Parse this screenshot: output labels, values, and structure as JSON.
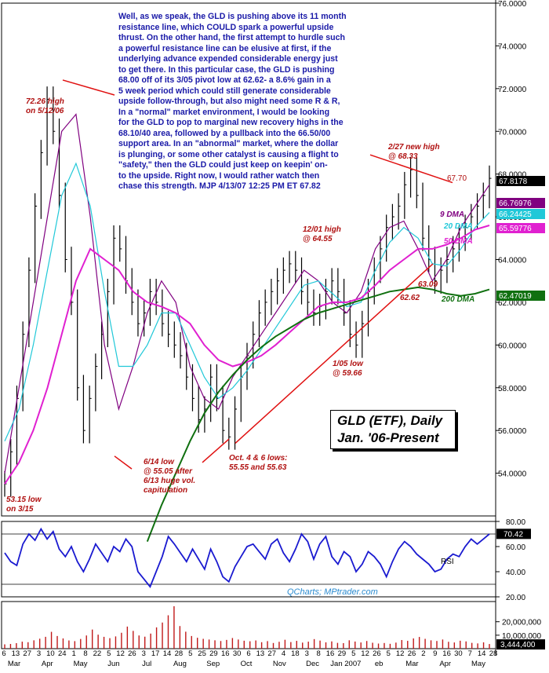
{
  "commentary": "Well, as we speak, the GLD is pushing above its 11 month\nresistance line, which COULD spark a powerful upside\nthrust. On the other hand, the first attempt to hurdle such\na powerful resistance line can be elusive at first, if the\nunderlying advance expended considerable energy just\nto get there. In this particular case, the GLD is pushing\n68.00 off of its 3/05 pivot low at 62.62- a 8.6% gain in a\n5 week period which could still generate considerable\nupside follow-through, but also might need some R & R,\nIn a \"normal\" market environment, I would be looking\nfor the GLD to pop to marginal new recovery highs in the\n68.10/40 area, followed by a pullback into the 66.50/00\nsupport area. In an \"abnormal\" market, where the dollar\nis plunging, or some other catalyst is causing a flight to\n\"safety,\" then the GLD could just keep on keepin' on-\nto the upside. Right now, I would rather watch then\nchase this strength.  MJP 4/13/07 12:25 PM ET 67.82",
  "title_line1": "GLD (ETF), Daily",
  "title_line2": "Jan. '06-Present",
  "credit": "QCharts; MPtrader.com",
  "annotations": {
    "high_7226": "72.26 high\non 5/12/06",
    "low_5315": "53.15 low\non 3/15",
    "low_5505": "6/14 low\n@ 55.05 after\n6/13 huge vol.\ncapitulation",
    "low_oct": "Oct. 4 & 6 lows:\n55.55 and 55.63",
    "low_5966": "1/05 low\n@ 59.66",
    "high_6455": "12/01 high\n@ 64.55",
    "high_6833": "2/27 new high\n@ 68.33",
    "level_6770": "67.70",
    "level_6309": "63.09",
    "level_6262": "62.62"
  },
  "chart_data": [
    {
      "type": "line",
      "title": "GLD (ETF), Daily",
      "subtitle": "Jan. '06-Present",
      "ylim": [
        52.0,
        76.0
      ],
      "y_ticks": [
        "76.0000",
        "74.0000",
        "72.0000",
        "70.0000",
        "68.0000",
        "66.0000",
        "64.0000",
        "62.0000",
        "60.0000",
        "58.0000",
        "56.0000",
        "54.0000"
      ],
      "x_tick_labels": [
        "6",
        "13",
        "27",
        "3",
        "10",
        "24",
        "1",
        "8",
        "22",
        "5",
        "12",
        "26",
        "3",
        "17",
        "14",
        "28",
        "5",
        "25",
        "29",
        "16",
        "30",
        "6",
        "13",
        "27",
        "4",
        "18",
        "3",
        "8",
        "16",
        "29",
        "5",
        "12",
        "26",
        "5",
        "12",
        "26",
        "2",
        "9",
        "16",
        "30",
        "7",
        "14",
        "28"
      ],
      "month_labels": [
        "Mar",
        "Apr",
        "May",
        "Jun",
        "Jul",
        "Aug",
        "Sep",
        "Oct",
        "Nov",
        "Dec",
        "Jan 2007",
        "eb",
        "Mar",
        "Apr",
        "May"
      ],
      "series": [
        {
          "name": "9 DMA",
          "color": "#800080",
          "values": [
            54.0,
            58.0,
            62.0,
            66.0,
            70.0,
            70.8,
            66.0,
            60.0,
            57.0,
            59.0,
            61.5,
            63.0,
            62.0,
            59.0,
            57.5,
            57.0,
            58.5,
            59.5,
            60.5,
            61.5,
            62.5,
            63.5,
            63.0,
            62.0,
            61.5,
            62.5,
            64.5,
            65.5,
            65.8,
            64.5,
            63.0,
            64.0,
            65.5,
            66.5,
            67.5
          ]
        },
        {
          "name": "20 DMA",
          "color": "#20c8d8",
          "values": [
            55.5,
            57.0,
            60.0,
            63.5,
            67.0,
            68.5,
            66.5,
            62.5,
            59.0,
            59.0,
            60.0,
            61.5,
            61.5,
            60.0,
            58.5,
            57.5,
            58.0,
            58.8,
            59.8,
            60.8,
            61.8,
            62.8,
            63.0,
            62.4,
            61.8,
            62.0,
            63.5,
            64.8,
            65.5,
            65.0,
            63.8,
            63.7,
            64.5,
            65.5,
            66.2
          ]
        },
        {
          "name": "50 DMA",
          "color": "#e020d0",
          "values": [
            53.5,
            54.5,
            56.0,
            58.0,
            60.5,
            63.0,
            64.5,
            64.0,
            63.5,
            62.5,
            62.0,
            61.8,
            61.5,
            61.0,
            60.0,
            59.3,
            59.0,
            59.2,
            59.5,
            60.0,
            60.6,
            61.2,
            61.8,
            62.0,
            62.0,
            62.2,
            62.8,
            63.5,
            64.0,
            64.5,
            64.5,
            64.7,
            65.0,
            65.4,
            65.6
          ]
        },
        {
          "name": "200 DMA",
          "color": "#107010",
          "values": [
            null,
            null,
            null,
            null,
            null,
            null,
            null,
            null,
            null,
            null,
            50.8,
            52.5,
            54.0,
            55.5,
            56.8,
            57.8,
            58.6,
            59.3,
            59.9,
            60.4,
            60.8,
            61.2,
            61.5,
            61.7,
            61.9,
            62.1,
            62.3,
            62.5,
            62.6,
            62.7,
            62.6,
            62.4,
            62.3,
            62.4,
            62.6
          ]
        }
      ],
      "close_path": [
        53.5,
        55.0,
        57.5,
        60.5,
        63.5,
        66.5,
        69.0,
        71.5,
        70.0,
        67.0,
        64.0,
        62.0,
        58.0,
        56.0,
        57.5,
        59.0,
        60.5,
        62.5,
        65.0,
        64.5,
        63.0,
        62.0,
        61.0,
        61.5,
        62.5,
        62.0,
        61.0,
        60.5,
        60.0,
        59.5,
        58.5,
        57.5,
        56.5,
        57.0,
        58.5,
        57.5,
        56.0,
        55.7,
        57.0,
        58.5,
        59.5,
        60.5,
        61.5,
        62.0,
        62.5,
        63.0,
        63.5,
        63.8,
        63.5,
        62.5,
        62.0,
        61.5,
        61.8,
        62.5,
        63.0,
        62.5,
        61.5,
        60.5,
        60.0,
        61.0,
        62.5,
        63.5,
        64.5,
        65.5,
        66.0,
        66.5,
        67.5,
        68.2,
        67.0,
        65.0,
        64.0,
        63.0,
        63.5,
        64.0,
        64.5,
        65.0,
        65.5,
        66.0,
        66.5,
        67.0,
        67.8
      ],
      "last_values": [
        {
          "label": "67.8178",
          "value": 67.8178,
          "color": "#000000"
        },
        {
          "label": "66.76976",
          "value": 66.76976,
          "color": "#800080"
        },
        {
          "label": "66.24425",
          "value": 66.24425,
          "color": "#20c8d8"
        },
        {
          "label": "65.59776",
          "value": 65.59776,
          "color": "#e020d0"
        },
        {
          "label": "62.47019",
          "value": 62.47019,
          "color": "#107010"
        }
      ]
    },
    {
      "type": "line",
      "name": "RSI",
      "ylim": [
        20,
        80
      ],
      "y_ticks": [
        "80.00",
        "60.00",
        "40.00",
        "20.00"
      ],
      "reference_lines": [
        70,
        30
      ],
      "values": [
        55,
        48,
        45,
        62,
        70,
        65,
        74,
        66,
        72,
        58,
        52,
        60,
        48,
        40,
        50,
        62,
        55,
        48,
        60,
        56,
        66,
        60,
        40,
        34,
        28,
        40,
        52,
        68,
        62,
        55,
        48,
        58,
        50,
        42,
        58,
        48,
        36,
        32,
        44,
        52,
        60,
        62,
        56,
        50,
        62,
        66,
        55,
        48,
        58,
        70,
        64,
        50,
        62,
        68,
        52,
        46,
        56,
        52,
        40,
        46,
        56,
        52,
        46,
        36,
        48,
        58,
        64,
        60,
        54,
        50,
        46,
        40,
        42,
        50,
        54,
        52,
        60,
        66,
        62,
        66,
        70
      ],
      "last_value": {
        "label": "70.42",
        "value": 70.42
      }
    },
    {
      "type": "bar",
      "name": "Volume",
      "ylim": [
        0,
        35000000
      ],
      "y_ticks": [
        "20,000,000",
        "10,000,000"
      ],
      "values": [
        3200000,
        3500000,
        4100000,
        5200000,
        4800000,
        6200000,
        7400000,
        8800000,
        12500000,
        9400000,
        7600000,
        6100000,
        5600000,
        7200000,
        9800000,
        14200000,
        10400000,
        8800000,
        7800000,
        9100000,
        11800000,
        16400000,
        13200000,
        9800000,
        8900000,
        11200000,
        15800000,
        19400000,
        24800000,
        31500000,
        16800000,
        12600000,
        9400000,
        8100000,
        7300000,
        6800000,
        6200000,
        5700000,
        6500000,
        7900000,
        6800000,
        5900000,
        5500000,
        6100000,
        4800000,
        5600000,
        4200000,
        5100000,
        6600000,
        4900000,
        5800000,
        4500000,
        5200000,
        7100000,
        6000000,
        4700000,
        5400000,
        4300000,
        4100000,
        6200000,
        5300000,
        4600000,
        5700000,
        4400000,
        3800000,
        4200000,
        3600000,
        4500000,
        6400000,
        5800000,
        7600000,
        8700000,
        7300000,
        6200000,
        5700000,
        6800000,
        5100000,
        4600000,
        5900000,
        5400000,
        4300000,
        3900000,
        4700000,
        3444400
      ],
      "last_value": {
        "label": "3,444,400",
        "value": 3444400
      }
    }
  ],
  "ma_labels": {
    "dma9": "9 DMA",
    "dma20": "20 DMA",
    "dma50": "50 DMA",
    "dma200": "200 DMA"
  },
  "rsi_label": "RSI"
}
